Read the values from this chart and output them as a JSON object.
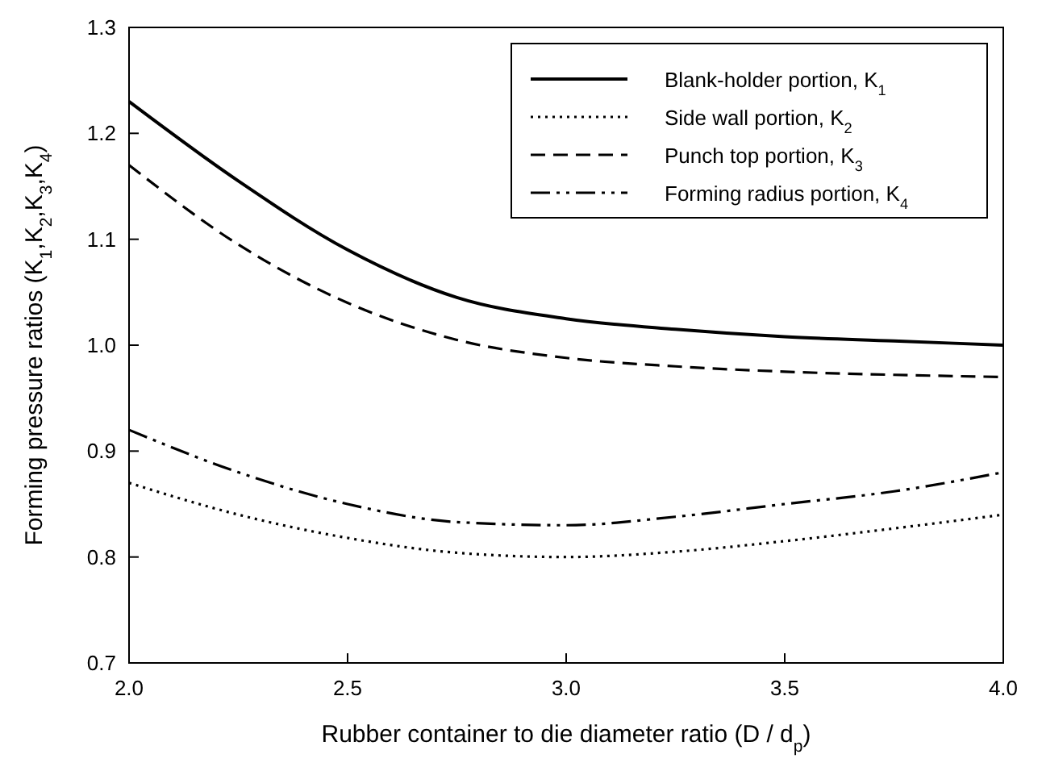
{
  "chart_data": {
    "type": "line",
    "xlabel": "Rubber container to die diameter ratio (D / d$_{p}$)",
    "ylabel": "Forming pressure ratios (K$_{1}$,K$_{2}$,K$_{3}$,K$_{4}$)",
    "x": [
      2.0,
      2.25,
      2.5,
      2.75,
      3.0,
      3.25,
      3.5,
      3.75,
      4.0
    ],
    "series": [
      {
        "name": "Blank-holder portion, K$_{1}$",
        "color": "#000000",
        "line_style": "solid",
        "values": [
          1.23,
          1.155,
          1.09,
          1.045,
          1.025,
          1.015,
          1.008,
          1.004,
          1.0
        ]
      },
      {
        "name": "Side wall portion, K$_{2}$",
        "color": "#000000",
        "line_style": "dotted",
        "values": [
          0.87,
          0.84,
          0.818,
          0.804,
          0.8,
          0.805,
          0.815,
          0.827,
          0.84
        ]
      },
      {
        "name": "Punch top portion, K$_{3}$",
        "color": "#000000",
        "line_style": "dashed",
        "values": [
          1.17,
          1.095,
          1.04,
          1.005,
          0.988,
          0.98,
          0.975,
          0.972,
          0.97
        ]
      },
      {
        "name": "Forming radius portion, K$_{4}$",
        "color": "#000000",
        "line_style": "dashdot",
        "values": [
          0.92,
          0.88,
          0.85,
          0.833,
          0.83,
          0.838,
          0.85,
          0.862,
          0.88
        ]
      }
    ],
    "xlim": [
      2.0,
      4.0
    ],
    "xticks": [
      {
        "value": 2,
        "label": "2.0"
      },
      2.5,
      {
        "value": 3,
        "label": "3.0"
      },
      3.5,
      {
        "value": 4,
        "label": "4.0"
      }
    ],
    "ylim": [
      0.7,
      1.3
    ],
    "yticks": [
      0.7,
      0.8,
      0.9,
      {
        "value": 1,
        "label": "1.0"
      },
      1.1,
      1.2,
      1.3
    ],
    "grid": false,
    "legend": "top right"
  }
}
